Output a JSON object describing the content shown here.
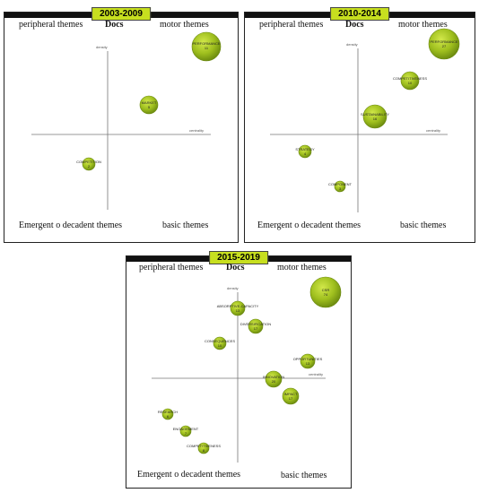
{
  "panels": [
    {
      "period": "2003-2009",
      "quadrants": {
        "top_left": "peripheral themes",
        "top_right": "motor themes",
        "bottom_left": "Emergent o decadent themes",
        "bottom_right": "basic themes"
      },
      "docs_label": "Docs",
      "axis_density": "density",
      "axis_centrality": "centrality",
      "themes": [
        {
          "name": "PERFORMANCE",
          "docs": "11"
        },
        {
          "name": "MARKET",
          "docs": "5"
        },
        {
          "name": "COMPETITION",
          "docs": "2"
        }
      ]
    },
    {
      "period": "2010-2014",
      "quadrants": {
        "top_left": "peripheral themes",
        "top_right": "motor themes",
        "bottom_left": "Emergent o decadent themes",
        "bottom_right": "basic themes"
      },
      "docs_label": "Docs",
      "axis_density": "density",
      "axis_centrality": "centrality",
      "themes": [
        {
          "name": "PERFORMANCE",
          "docs": "27"
        },
        {
          "name": "COMPETITIVENESS",
          "docs": "10"
        },
        {
          "name": "SUSTAINABILITY",
          "docs": "16"
        },
        {
          "name": "STRATEGY",
          "docs": "4"
        },
        {
          "name": "COMPONENT",
          "docs": "3"
        }
      ]
    },
    {
      "period": "2015-2019",
      "quadrants": {
        "top_left": "peripheral themes",
        "top_right": "motor themes",
        "bottom_left": "Emergent o decadent themes",
        "bottom_right": "basic themes"
      },
      "docs_label": "Docs",
      "axis_density": "density",
      "axis_centrality": "centrality",
      "themes": [
        {
          "name": "CSR",
          "docs": "74"
        },
        {
          "name": "ABSORPTIVE-CAPACITY",
          "docs": "13"
        },
        {
          "name": "DIVERSIFICATION",
          "docs": "17"
        },
        {
          "name": "CONSEQUENCES",
          "docs": "10"
        },
        {
          "name": "OPPORTUNITIES",
          "docs": "13"
        },
        {
          "name": "INNOVATION",
          "docs": "20"
        },
        {
          "name": "IMPACT",
          "docs": "17"
        },
        {
          "name": "RESEARCH",
          "docs": "6"
        },
        {
          "name": "ENGAGEMENT",
          "docs": "7"
        },
        {
          "name": "COMPETITIVENESS",
          "docs": "8"
        }
      ]
    }
  ]
}
